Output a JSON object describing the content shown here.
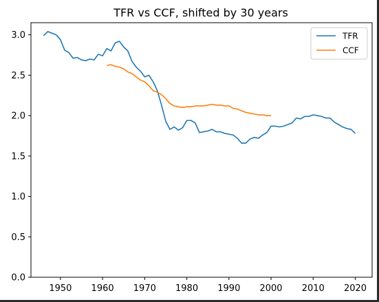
{
  "chart_data": {
    "type": "line",
    "title": "TFR vs CCF, shifted by 30 years",
    "xlabel": "",
    "ylabel": "",
    "xlim": [
      1943,
      2024
    ],
    "ylim": [
      0.0,
      3.15
    ],
    "xticks": [
      1950,
      1960,
      1970,
      1980,
      1990,
      2000,
      2010,
      2020
    ],
    "yticks": [
      0.0,
      0.5,
      1.0,
      1.5,
      2.0,
      2.5,
      3.0
    ],
    "xtick_labels": [
      "1950",
      "1960",
      "1970",
      "1980",
      "1990",
      "2000",
      "2010",
      "2020"
    ],
    "ytick_labels": [
      "0.0",
      "0.5",
      "1.0",
      "1.5",
      "2.0",
      "2.5",
      "3.0"
    ],
    "grid": false,
    "legend": "top-right",
    "series": [
      {
        "name": "TFR",
        "color": "#1f77b4",
        "x": [
          1946,
          1947,
          1948,
          1949,
          1950,
          1951,
          1952,
          1953,
          1954,
          1955,
          1956,
          1957,
          1958,
          1959,
          1960,
          1961,
          1962,
          1963,
          1964,
          1965,
          1966,
          1967,
          1968,
          1969,
          1970,
          1971,
          1972,
          1973,
          1974,
          1975,
          1976,
          1977,
          1978,
          1979,
          1980,
          1981,
          1982,
          1983,
          1984,
          1985,
          1986,
          1987,
          1988,
          1989,
          1990,
          1991,
          1992,
          1993,
          1994,
          1995,
          1996,
          1997,
          1998,
          1999,
          2000,
          2001,
          2002,
          2003,
          2004,
          2005,
          2006,
          2007,
          2008,
          2009,
          2010,
          2011,
          2012,
          2013,
          2014,
          2015,
          2016,
          2017,
          2018,
          2019,
          2020
        ],
        "y": [
          2.99,
          3.04,
          3.02,
          3.0,
          2.94,
          2.81,
          2.78,
          2.71,
          2.72,
          2.69,
          2.68,
          2.7,
          2.69,
          2.76,
          2.74,
          2.83,
          2.8,
          2.9,
          2.92,
          2.85,
          2.8,
          2.67,
          2.6,
          2.55,
          2.48,
          2.5,
          2.42,
          2.31,
          2.13,
          1.93,
          1.83,
          1.86,
          1.82,
          1.85,
          1.94,
          1.94,
          1.91,
          1.79,
          1.8,
          1.81,
          1.83,
          1.8,
          1.8,
          1.78,
          1.77,
          1.76,
          1.72,
          1.66,
          1.66,
          1.71,
          1.73,
          1.72,
          1.76,
          1.79,
          1.87,
          1.87,
          1.86,
          1.87,
          1.89,
          1.91,
          1.97,
          1.96,
          1.99,
          1.99,
          2.01,
          2.0,
          1.99,
          1.97,
          1.97,
          1.92,
          1.89,
          1.86,
          1.84,
          1.83,
          1.78
        ]
      },
      {
        "name": "CCF",
        "color": "#ff7f0e",
        "x": [
          1961,
          1962,
          1963,
          1964,
          1965,
          1966,
          1967,
          1968,
          1969,
          1970,
          1971,
          1972,
          1973,
          1974,
          1975,
          1976,
          1977,
          1978,
          1979,
          1980,
          1981,
          1982,
          1983,
          1984,
          1985,
          1986,
          1987,
          1988,
          1989,
          1990,
          1991,
          1992,
          1993,
          1994,
          1995,
          1996,
          1997,
          1998,
          1999,
          2000
        ],
        "y": [
          2.62,
          2.63,
          2.61,
          2.6,
          2.58,
          2.54,
          2.52,
          2.48,
          2.44,
          2.42,
          2.37,
          2.31,
          2.29,
          2.26,
          2.21,
          2.15,
          2.12,
          2.11,
          2.1,
          2.11,
          2.11,
          2.12,
          2.12,
          2.12,
          2.13,
          2.14,
          2.13,
          2.13,
          2.12,
          2.12,
          2.09,
          2.08,
          2.06,
          2.04,
          2.03,
          2.02,
          2.01,
          2.01,
          2.0,
          2.0
        ]
      }
    ]
  }
}
